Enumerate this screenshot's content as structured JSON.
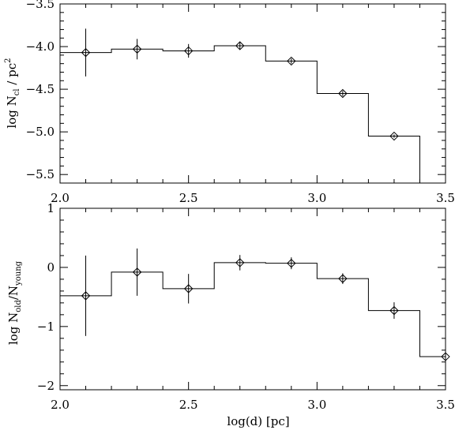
{
  "chart_data": [
    {
      "type": "line",
      "style": "step histogram with diamond markers and error bars",
      "xlim": [
        2.0,
        3.5
      ],
      "ylim": [
        -5.6,
        -3.5
      ],
      "xticks": [
        2.0,
        2.5,
        3.0,
        3.5
      ],
      "xtick_labels": [
        "2.0",
        "2.5",
        "3.0",
        "3.5"
      ],
      "yticks": [
        -5.5,
        -5.0,
        -4.5,
        -4.0,
        -3.5
      ],
      "ytick_labels": [
        "−5.5",
        "−5.0",
        "−4.5",
        "−4.0",
        "−3.5"
      ],
      "ylabel": {
        "main": "log N",
        "sub": "cl",
        "unit": "/ pc",
        "sup": "2"
      },
      "bin_edges": [
        2.0,
        2.2,
        2.4,
        2.6,
        2.8,
        3.0,
        3.2,
        3.4
      ],
      "x": [
        2.1,
        2.3,
        2.5,
        2.7,
        2.9,
        3.1,
        3.3
      ],
      "y": [
        -4.07,
        -4.03,
        -4.05,
        -3.99,
        -4.17,
        -4.55,
        -5.05
      ],
      "yerr": [
        0.28,
        0.12,
        0.08,
        0.04,
        0.03,
        0.03,
        0.02
      ]
    },
    {
      "type": "line",
      "style": "step histogram with diamond markers and error bars",
      "xlim": [
        2.0,
        3.5
      ],
      "ylim": [
        -2.07,
        1.0
      ],
      "xticks": [
        2.0,
        2.5,
        3.0,
        3.5
      ],
      "xtick_labels": [
        "2.0",
        "2.5",
        "3.0",
        "3.5"
      ],
      "yticks": [
        -2,
        -1,
        0,
        1
      ],
      "ytick_labels": [
        "−2",
        "−1",
        "0",
        "1"
      ],
      "xlabel": "log(d)  [pc]",
      "ylabel": {
        "main": "log N",
        "sub": "old",
        "mid": "/N",
        "sub2": "young"
      },
      "bin_edges": [
        2.0,
        2.2,
        2.4,
        2.6,
        2.8,
        3.0,
        3.2,
        3.4,
        3.5
      ],
      "x": [
        2.1,
        2.3,
        2.5,
        2.7,
        2.9,
        3.1,
        3.3,
        3.5
      ],
      "y": [
        -0.48,
        -0.08,
        -0.36,
        0.08,
        0.07,
        -0.19,
        -0.73,
        -1.51
      ],
      "yerr": [
        0.68,
        0.4,
        0.25,
        0.13,
        0.1,
        0.09,
        0.14,
        0.0
      ]
    }
  ]
}
